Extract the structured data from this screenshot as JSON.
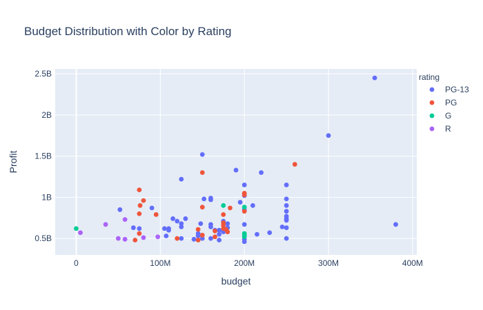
{
  "chart_data": {
    "type": "scatter",
    "title": "Budget Distribution with Color by Rating",
    "xlabel": "budget",
    "ylabel": "Profit",
    "xlim": [
      -25000000,
      405000000
    ],
    "ylim": [
      300000000,
      2560000000
    ],
    "grid": true,
    "legend_title": "rating",
    "legend_position": "right",
    "x_ticks": [
      {
        "value": 0,
        "label": "0"
      },
      {
        "value": 100000000,
        "label": "100M"
      },
      {
        "value": 200000000,
        "label": "200M"
      },
      {
        "value": 300000000,
        "label": "300M"
      },
      {
        "value": 400000000,
        "label": "400M"
      }
    ],
    "y_ticks": [
      {
        "value": 500000000,
        "label": "0.5B"
      },
      {
        "value": 1000000000,
        "label": "1B"
      },
      {
        "value": 1500000000,
        "label": "1.5B"
      },
      {
        "value": 2000000000,
        "label": "2B"
      },
      {
        "value": 2500000000,
        "label": "2.5B"
      }
    ],
    "series": [
      {
        "name": "PG-13",
        "color": "#636efa",
        "points": [
          [
            355000000,
            2450000000
          ],
          [
            300000000,
            1750000000
          ],
          [
            380000000,
            670000000
          ],
          [
            150000000,
            1520000000
          ],
          [
            190000000,
            1330000000
          ],
          [
            220000000,
            1300000000
          ],
          [
            125000000,
            1220000000
          ],
          [
            200000000,
            1150000000
          ],
          [
            250000000,
            1150000000
          ],
          [
            200000000,
            1020000000
          ],
          [
            160000000,
            990000000
          ],
          [
            160000000,
            970000000
          ],
          [
            152000000,
            980000000
          ],
          [
            250000000,
            980000000
          ],
          [
            195000000,
            940000000
          ],
          [
            210000000,
            900000000
          ],
          [
            250000000,
            900000000
          ],
          [
            90000000,
            870000000
          ],
          [
            52000000,
            850000000
          ],
          [
            200000000,
            850000000
          ],
          [
            250000000,
            830000000
          ],
          [
            250000000,
            770000000
          ],
          [
            250000000,
            740000000
          ],
          [
            250000000,
            720000000
          ],
          [
            115000000,
            740000000
          ],
          [
            130000000,
            740000000
          ],
          [
            120000000,
            710000000
          ],
          [
            175000000,
            710000000
          ],
          [
            125000000,
            680000000
          ],
          [
            148000000,
            680000000
          ],
          [
            160000000,
            670000000
          ],
          [
            180000000,
            680000000
          ],
          [
            200000000,
            670000000
          ],
          [
            125000000,
            640000000
          ],
          [
            160000000,
            640000000
          ],
          [
            68000000,
            630000000
          ],
          [
            75000000,
            620000000
          ],
          [
            105000000,
            620000000
          ],
          [
            110000000,
            620000000
          ],
          [
            245000000,
            640000000
          ],
          [
            250000000,
            630000000
          ],
          [
            180000000,
            630000000
          ],
          [
            165000000,
            600000000
          ],
          [
            170000000,
            600000000
          ],
          [
            110000000,
            600000000
          ],
          [
            175000000,
            580000000
          ],
          [
            230000000,
            570000000
          ],
          [
            215000000,
            550000000
          ],
          [
            145000000,
            560000000
          ],
          [
            170000000,
            550000000
          ],
          [
            107000000,
            530000000
          ],
          [
            145000000,
            530000000
          ],
          [
            160000000,
            500000000
          ],
          [
            150000000,
            500000000
          ],
          [
            125000000,
            500000000
          ],
          [
            140000000,
            490000000
          ],
          [
            170000000,
            480000000
          ],
          [
            200000000,
            490000000
          ],
          [
            250000000,
            500000000
          ],
          [
            200000000,
            460000000
          ]
        ]
      },
      {
        "name": "PG",
        "color": "#ef553b",
        "points": [
          [
            260000000,
            1400000000
          ],
          [
            150000000,
            1300000000
          ],
          [
            75000000,
            1090000000
          ],
          [
            200000000,
            1050000000
          ],
          [
            200000000,
            1030000000
          ],
          [
            80000000,
            960000000
          ],
          [
            76000000,
            900000000
          ],
          [
            150000000,
            880000000
          ],
          [
            183000000,
            870000000
          ],
          [
            200000000,
            830000000
          ],
          [
            75000000,
            800000000
          ],
          [
            95000000,
            790000000
          ],
          [
            175000000,
            790000000
          ],
          [
            175000000,
            690000000
          ],
          [
            175000000,
            660000000
          ],
          [
            175000000,
            620000000
          ],
          [
            145000000,
            610000000
          ],
          [
            178000000,
            610000000
          ],
          [
            165000000,
            590000000
          ],
          [
            180000000,
            580000000
          ],
          [
            75000000,
            560000000
          ],
          [
            150000000,
            540000000
          ],
          [
            165000000,
            520000000
          ],
          [
            120000000,
            500000000
          ],
          [
            145000000,
            480000000
          ],
          [
            70000000,
            480000000
          ]
        ]
      },
      {
        "name": "G",
        "color": "#00cc96",
        "points": [
          [
            0,
            620000000
          ],
          [
            175000000,
            900000000
          ],
          [
            200000000,
            880000000
          ],
          [
            200000000,
            560000000
          ],
          [
            200000000,
            540000000
          ],
          [
            200000000,
            520000000
          ]
        ]
      },
      {
        "name": "R",
        "color": "#ab63fa",
        "points": [
          [
            5000000,
            570000000
          ],
          [
            35000000,
            670000000
          ],
          [
            58000000,
            730000000
          ],
          [
            50000000,
            500000000
          ],
          [
            58000000,
            490000000
          ],
          [
            80000000,
            510000000
          ],
          [
            97000000,
            520000000
          ]
        ]
      }
    ]
  }
}
